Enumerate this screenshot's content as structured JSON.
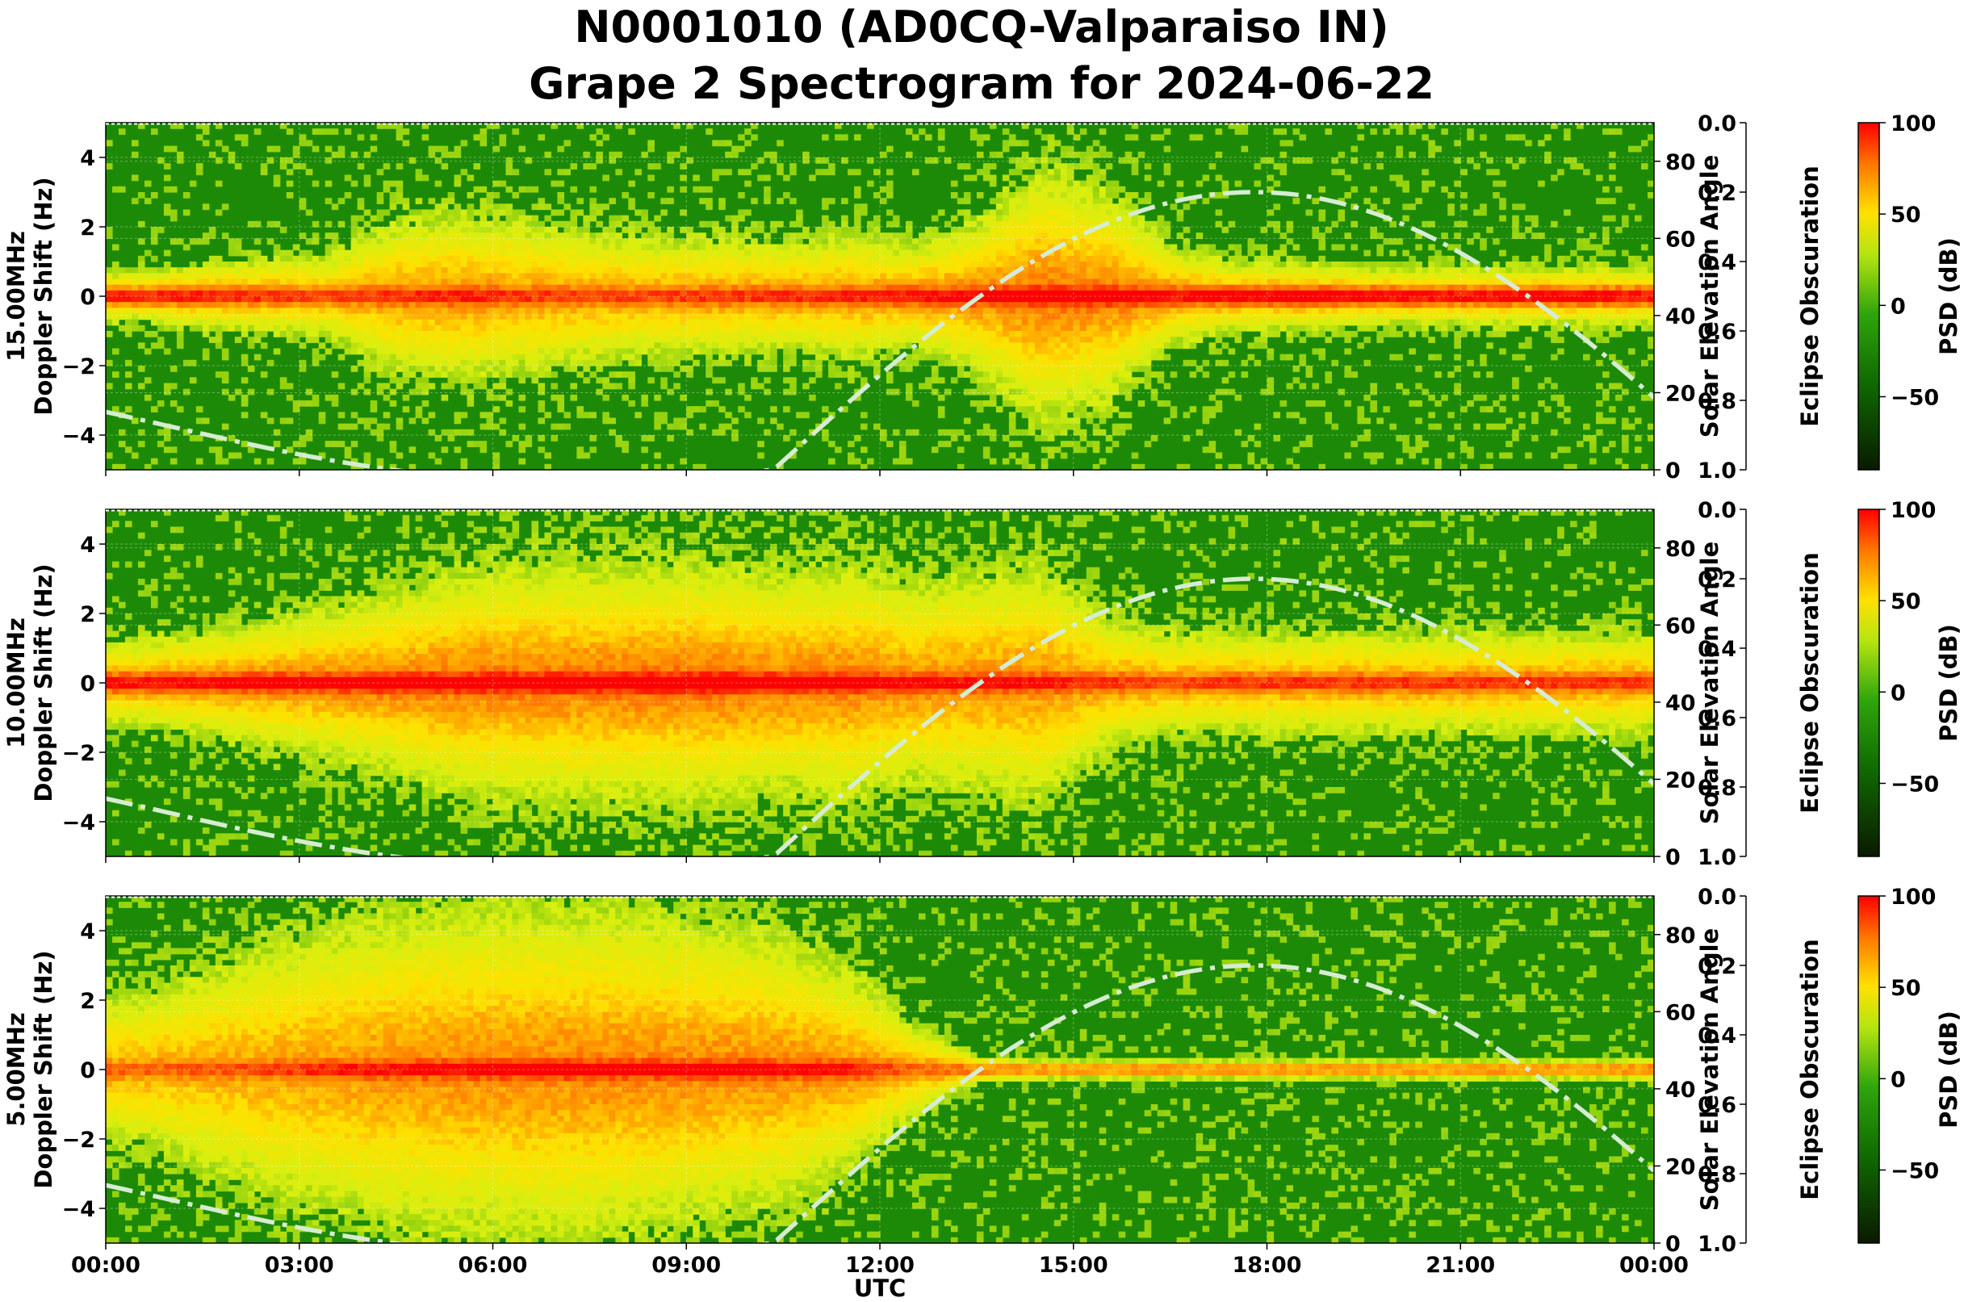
{
  "chart_data": {
    "type": "heatmap",
    "title": "N0001010 (AD0CQ-Valparaiso IN)\nGrape 2 Spectrogram for 2024-06-22",
    "title_lines": [
      "N0001010 (AD0CQ-Valparaiso IN)",
      "Grape 2 Spectrogram for 2024-06-22"
    ],
    "xlabel": "UTC",
    "x_ticks": [
      "00:00",
      "03:00",
      "06:00",
      "09:00",
      "12:00",
      "15:00",
      "18:00",
      "21:00",
      "00:00"
    ],
    "xlim_hours": [
      0,
      24
    ],
    "ylabel_common": "Doppler Shift (Hz)",
    "ylim": [
      -5,
      5
    ],
    "y_ticks": [
      -4,
      -2,
      0,
      2,
      4
    ],
    "y_tick_labels": [
      "−4",
      "−2",
      "0",
      "2",
      "4"
    ],
    "right_axis": {
      "label": "Solar Elevation Angle",
      "ylim": [
        0,
        90
      ],
      "ticks": [
        0,
        20,
        40,
        60,
        80
      ]
    },
    "eclipse_axis": {
      "label": "Eclipse Obscuration",
      "ylim": [
        1.0,
        0.0
      ],
      "ticks": [
        "0.0",
        "0.2",
        "0.4",
        "0.6",
        "0.8",
        "1.0"
      ]
    },
    "colorbar": {
      "label": "PSD (dB)",
      "range": [
        -90,
        100
      ],
      "ticks": [
        100,
        50,
        0,
        -50
      ],
      "tick_labels": [
        "100",
        "50",
        "0",
        "−50"
      ],
      "colors": [
        "#0a1a00",
        "#0f6a00",
        "#2fa60c",
        "#d7ef10",
        "#ffe100",
        "#ff7800",
        "#ff0000"
      ]
    },
    "solar_elevation_line": {
      "style": "dash-dot",
      "color": "#d6ecd2",
      "peak_hour": 17.8,
      "peak_elevation": 72,
      "x_hours": [
        0,
        1,
        2,
        3,
        4,
        5,
        6,
        7,
        8,
        9,
        10,
        10.35,
        11,
        12,
        13,
        14,
        15,
        16,
        17,
        17.8,
        18,
        19,
        20,
        21,
        22,
        23,
        24
      ],
      "elevation_deg": [
        15,
        8,
        1,
        -5,
        -9,
        -12,
        -12,
        -10,
        -6,
        -1,
        5,
        0,
        6,
        17,
        28,
        40,
        51,
        61,
        69,
        72,
        72,
        68,
        60,
        50,
        39,
        27,
        15
      ]
    },
    "panels": [
      {
        "freq_label": "15.00MHz",
        "ylabel_lines": [
          "15.00MHz",
          "Doppler Shift (Hz)"
        ],
        "carrier_strength_by_hour": [
          0.55,
          0.55,
          0.5,
          0.45,
          0.5,
          0.55,
          0.5,
          0.45,
          0.45,
          0.5,
          0.5,
          0.55,
          0.6,
          0.65,
          0.8,
          0.75,
          0.6,
          0.65,
          0.7,
          0.65,
          0.6,
          0.6,
          0.65,
          0.6,
          0.55
        ],
        "spread_hz_by_hour": [
          0.6,
          0.8,
          0.9,
          1.0,
          1.8,
          2.0,
          1.8,
          1.6,
          1.4,
          1.4,
          1.3,
          1.5,
          1.2,
          1.8,
          3.0,
          2.5,
          1.2,
          0.8,
          0.8,
          0.7,
          0.7,
          0.7,
          0.7,
          0.7,
          0.6
        ]
      },
      {
        "freq_label": "10.00MHz",
        "ylabel_lines": [
          "10.00MHz",
          "Doppler Shift (Hz)"
        ],
        "carrier_strength_by_hour": [
          0.6,
          0.65,
          0.7,
          0.7,
          0.75,
          0.8,
          0.8,
          0.8,
          0.85,
          0.85,
          0.75,
          0.75,
          0.65,
          0.6,
          0.6,
          0.5,
          0.45,
          0.5,
          0.5,
          0.5,
          0.5,
          0.5,
          0.5,
          0.5,
          0.5
        ],
        "spread_hz_by_hour": [
          1.0,
          1.2,
          1.5,
          1.8,
          2.2,
          2.6,
          2.8,
          2.8,
          2.8,
          2.8,
          2.6,
          2.8,
          2.4,
          2.6,
          2.8,
          1.6,
          1.2,
          1.2,
          1.2,
          1.2,
          1.2,
          1.2,
          1.2,
          1.2,
          1.1
        ]
      },
      {
        "freq_label": "5.00MHz",
        "ylabel_lines": [
          "5.00MHz",
          "Doppler Shift (Hz)"
        ],
        "carrier_strength_by_hour": [
          0.35,
          0.4,
          0.45,
          0.55,
          0.6,
          0.65,
          0.7,
          0.7,
          0.7,
          0.7,
          0.65,
          0.6,
          0.35,
          0.3,
          0.3,
          0.3,
          0.3,
          0.3,
          0.3,
          0.3,
          0.3,
          0.3,
          0.3,
          0.3,
          0.3
        ],
        "spread_hz_by_hour": [
          1.8,
          2.4,
          3.0,
          3.4,
          3.8,
          4.0,
          4.0,
          4.0,
          3.8,
          3.5,
          3.2,
          2.4,
          1.2,
          0.3,
          0.2,
          0.2,
          0.2,
          0.2,
          0.2,
          0.2,
          0.2,
          0.2,
          0.2,
          0.2,
          0.3
        ]
      }
    ]
  }
}
